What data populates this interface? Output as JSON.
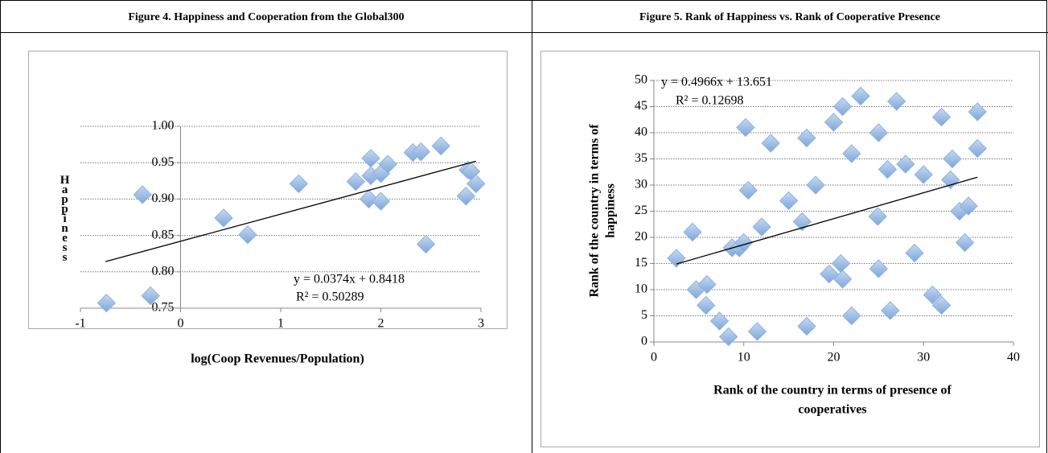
{
  "chart_data": [
    {
      "type": "scatter",
      "title": "Figure 4.  Happiness and Cooperation from the Global300",
      "x_label": "log(Coop Revenues/Population)",
      "y_label": "Happiness",
      "x": [
        -0.74,
        -0.38,
        -0.3,
        0.43,
        0.67,
        1.18,
        1.75,
        1.88,
        1.9,
        1.9,
        2.0,
        2.0,
        2.07,
        2.32,
        2.4,
        2.45,
        2.6,
        2.85,
        2.87,
        2.9,
        2.95
      ],
      "series": [
        {
          "color": "#8db3e2",
          "values": [
            0.757,
            0.906,
            0.767,
            0.874,
            0.851,
            0.921,
            0.924,
            0.9,
            0.932,
            0.956,
            0.897,
            0.935,
            0.948,
            0.964,
            0.965,
            0.838,
            0.973,
            0.904,
            0.94,
            0.938,
            0.921
          ]
        }
      ],
      "trendline": {
        "x": [
          -0.75,
          2.95
        ],
        "y": [
          0.814,
          0.952
        ]
      },
      "annotations": [
        "y = 0.0374x + 0.8418",
        "R² = 0.50289"
      ],
      "xlim": [
        -1,
        3
      ],
      "xticks": [
        -1,
        0,
        1,
        2,
        3
      ],
      "ylim": [
        0.75,
        1.0
      ],
      "yticks": [
        0.75,
        {
          "value": 0.8,
          "label": "0.80"
        },
        0.85,
        {
          "value": 0.9,
          "label": "0.90"
        },
        0.95,
        {
          "value": 1.0,
          "label": "1.00"
        }
      ],
      "grid": true
    },
    {
      "type": "scatter",
      "title": "Figure 5. Rank of Happiness vs. Rank of Cooperative Presence",
      "x_label": [
        "Rank of the country in terms of presence of",
        "cooperatives"
      ],
      "y_label": [
        "Rank of the country in terms of",
        "happiness"
      ],
      "x": [
        2.5,
        4.3,
        4.7,
        5.9,
        5.8,
        7.3,
        8.3,
        8.7,
        9.5,
        10,
        10.2,
        10.5,
        11.5,
        12,
        13,
        15,
        16.5,
        17,
        17,
        18,
        19.5,
        20,
        20.8,
        21,
        21,
        22,
        22,
        23,
        24.9,
        25,
        25,
        26,
        26.3,
        27,
        28,
        29,
        30,
        31,
        32,
        32,
        33,
        33.2,
        34,
        34.6,
        35,
        36,
        36
      ],
      "series": [
        {
          "color": "#8db3e2",
          "values": [
            16,
            21,
            10,
            11,
            7,
            4,
            1,
            18,
            18,
            19,
            41,
            29,
            2,
            22,
            38,
            27,
            23,
            39,
            3,
            30,
            13,
            42,
            15,
            45,
            12,
            36,
            5,
            47,
            24,
            40,
            14,
            33,
            6,
            46,
            34,
            17,
            32,
            9,
            43,
            7,
            31,
            35,
            25,
            19,
            26,
            44,
            37
          ]
        }
      ],
      "trendline": {
        "x": [
          2.5,
          36
        ],
        "y": [
          14.9,
          31.5
        ]
      },
      "annotations": [
        "y = 0.4966x + 13.651",
        "R² = 0.12698"
      ],
      "xlim": [
        0,
        40
      ],
      "xticks": [
        0,
        10,
        20,
        30,
        40
      ],
      "ylim": [
        0,
        50
      ],
      "yticks": [
        0,
        5,
        10,
        15,
        20,
        25,
        30,
        35,
        40,
        45,
        50
      ],
      "grid": true
    }
  ]
}
